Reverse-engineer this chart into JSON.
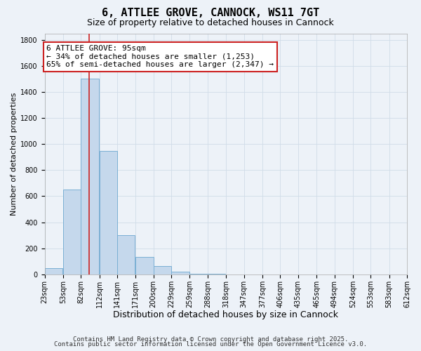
{
  "title": "6, ATTLEE GROVE, CANNOCK, WS11 7GT",
  "subtitle": "Size of property relative to detached houses in Cannock",
  "bar_heights": [
    50,
    650,
    1500,
    950,
    300,
    135,
    65,
    20,
    5,
    2,
    0,
    0,
    0,
    0,
    0,
    0,
    0,
    0,
    0,
    0
  ],
  "bin_left_edges": [
    23,
    53,
    82,
    112,
    141,
    171,
    200,
    229,
    259,
    288,
    318,
    347,
    377,
    406,
    435,
    465,
    494,
    524,
    553,
    583
  ],
  "bin_width": 29,
  "tick_labels": [
    "23sqm",
    "53sqm",
    "82sqm",
    "112sqm",
    "141sqm",
    "171sqm",
    "200sqm",
    "229sqm",
    "259sqm",
    "288sqm",
    "318sqm",
    "347sqm",
    "377sqm",
    "406sqm",
    "435sqm",
    "465sqm",
    "494sqm",
    "524sqm",
    "553sqm",
    "583sqm",
    "612sqm"
  ],
  "xlabel": "Distribution of detached houses by size in Cannock",
  "ylabel": "Number of detached properties",
  "ylim": [
    0,
    1850
  ],
  "yticks": [
    0,
    200,
    400,
    600,
    800,
    1000,
    1200,
    1400,
    1600,
    1800
  ],
  "bar_color": "#c5d8ec",
  "bar_edge_color": "#7aafd4",
  "grid_color": "#d0dce8",
  "background_color": "#edf2f8",
  "red_line_x": 95,
  "annotation_title": "6 ATTLEE GROVE: 95sqm",
  "annotation_line1": "← 34% of detached houses are smaller (1,253)",
  "annotation_line2": "65% of semi-detached houses are larger (2,347) →",
  "annotation_box_color": "#ffffff",
  "annotation_border_color": "#cc2222",
  "red_line_color": "#cc2222",
  "footer1": "Contains HM Land Registry data © Crown copyright and database right 2025.",
  "footer2": "Contains public sector information licensed under the Open Government Licence v3.0.",
  "title_fontsize": 11,
  "subtitle_fontsize": 9,
  "xlabel_fontsize": 9,
  "ylabel_fontsize": 8,
  "tick_fontsize": 7,
  "annotation_fontsize": 8,
  "footer_fontsize": 6.5
}
